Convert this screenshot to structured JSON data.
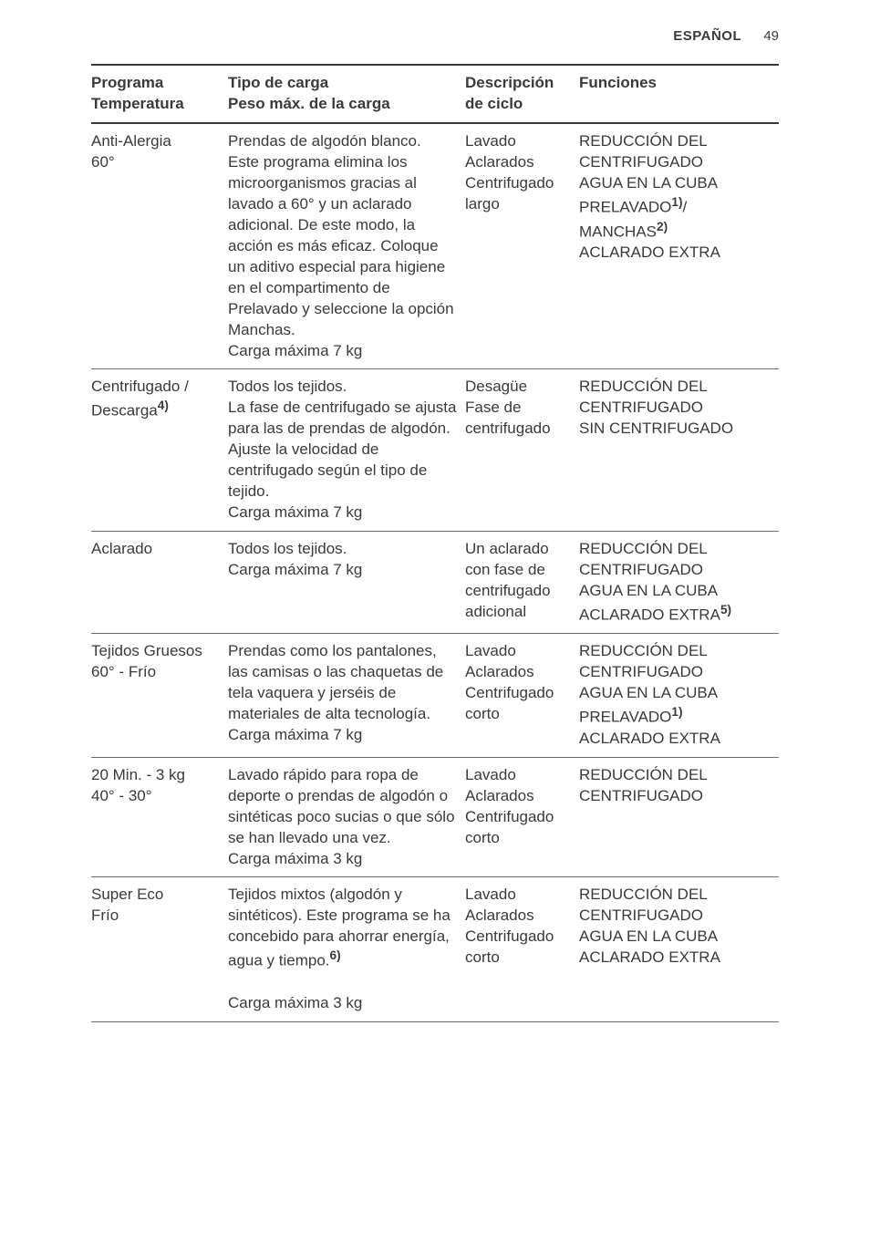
{
  "pageHeader": {
    "lang": "ESPAÑOL",
    "num": "49"
  },
  "headers": {
    "c1a": "Programa",
    "c1b": "Temperatura",
    "c2a": "Tipo de carga",
    "c2b": "Peso máx. de la carga",
    "c3a": "Descripción",
    "c3b": "de ciclo",
    "c4": "Funciones"
  },
  "rows": [
    {
      "prog": {
        "line1": "Anti-Alergia",
        "line2": "60°",
        "sup": ""
      },
      "carga": "Prendas de algodón blanco.\nEste programa elimina los microorganismos gracias al lavado a 60° y un aclarado adicional. De este modo, la acción es más eficaz. Coloque un aditivo especial para higiene en el compartimento de Prelavado y seleccione la opción Manchas.\nCarga máxima 7 kg",
      "ciclo": "Lavado\nAclarados\nCentrifugado largo",
      "func": [
        {
          "txt": "REDUCCIÓN DEL CENTRIFUGADO"
        },
        {
          "txt": "AGUA EN LA CUBA"
        },
        {
          "txt": "PRELAVADO",
          "sup": "1)",
          "tail": "/ MANCHAS",
          "sup2": "2)"
        },
        {
          "txt": "ACLARADO EXTRA"
        }
      ]
    },
    {
      "prog": {
        "line1": "Centrifugado / Descarga",
        "sup": "4)",
        "line2": ""
      },
      "carga": "Todos los tejidos.\nLa fase de centrifugado se ajusta para las de prendas de algodón. Ajuste la velocidad de centrifugado según el tipo de tejido.\nCarga máxima 7 kg",
      "ciclo": "Desagüe\nFase de centrifugado",
      "func": [
        {
          "txt": "REDUCCIÓN DEL CENTRIFUGADO"
        },
        {
          "txt": "SIN CENTRIFUGADO"
        }
      ]
    },
    {
      "prog": {
        "line1": "Aclarado",
        "line2": "",
        "sup": ""
      },
      "carga": "Todos los tejidos.\nCarga máxima 7 kg",
      "ciclo": "Un aclarado con fase de centrifugado adicional",
      "func": [
        {
          "txt": "REDUCCIÓN DEL CENTRIFUGADO"
        },
        {
          "txt": "AGUA EN LA CUBA"
        },
        {
          "txt": "ACLARADO EXTRA",
          "sup": "5)"
        }
      ]
    },
    {
      "prog": {
        "line1": "Tejidos Gruesos",
        "line2": "60° - Frío",
        "sup": ""
      },
      "carga": "Prendas como los pantalones, las camisas o las chaquetas de tela vaquera y jerséis de materiales de alta tecnología.\nCarga máxima 7 kg",
      "ciclo": "Lavado\nAclarados\nCentrifugado corto",
      "func": [
        {
          "txt": "REDUCCIÓN DEL CENTRIFUGADO"
        },
        {
          "txt": "AGUA EN LA CUBA"
        },
        {
          "txt": "PRELAVADO",
          "sup": "1)"
        },
        {
          "txt": "ACLARADO EXTRA"
        }
      ]
    },
    {
      "prog": {
        "line1": "20 Min. - 3 kg",
        "line2": "40° - 30°",
        "sup": ""
      },
      "carga": "Lavado rápido para ropa de deporte o prendas de algodón o sintéticas poco sucias o que sólo se han llevado una vez.\nCarga máxima 3 kg",
      "ciclo": "Lavado\nAclarados\nCentrifugado corto",
      "func": [
        {
          "txt": "REDUCCIÓN DEL CENTRIFUGADO"
        }
      ]
    },
    {
      "prog": {
        "line1": "Super Eco",
        "line2": "Frío",
        "sup": ""
      },
      "carga_pre": "Tejidos mixtos (algodón y sintéticos). Este programa se ha concebido para ahorrar energía, agua y tiempo.",
      "carga_sup": "6)",
      "carga_post": "\nCarga máxima 3 kg",
      "ciclo": "Lavado\nAclarados\nCentrifugado corto",
      "func": [
        {
          "txt": "REDUCCIÓN DEL CENTRIFUGADO"
        },
        {
          "txt": "AGUA EN LA CUBA"
        },
        {
          "txt": "ACLARADO EXTRA"
        }
      ]
    }
  ]
}
